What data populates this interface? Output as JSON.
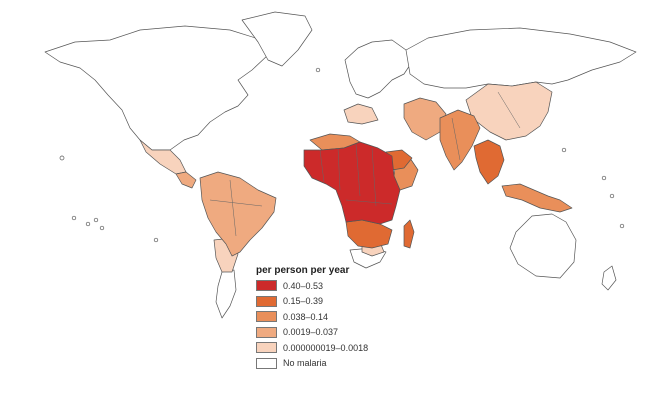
{
  "legend": {
    "title": "per person per year",
    "items": [
      {
        "label": "0.40–0.53",
        "color": "#cc2a2a"
      },
      {
        "label": "0.15–0.39",
        "color": "#e06a33"
      },
      {
        "label": "0.038–0.14",
        "color": "#e98f5a"
      },
      {
        "label": "0.0019–0.037",
        "color": "#efaa80"
      },
      {
        "label": "0.000000019–0.0018",
        "color": "#f8d3bd"
      },
      {
        "label": "No malaria",
        "color": "#ffffff"
      }
    ]
  },
  "colors": {
    "background": "#ffffff",
    "outline": "#555555"
  }
}
